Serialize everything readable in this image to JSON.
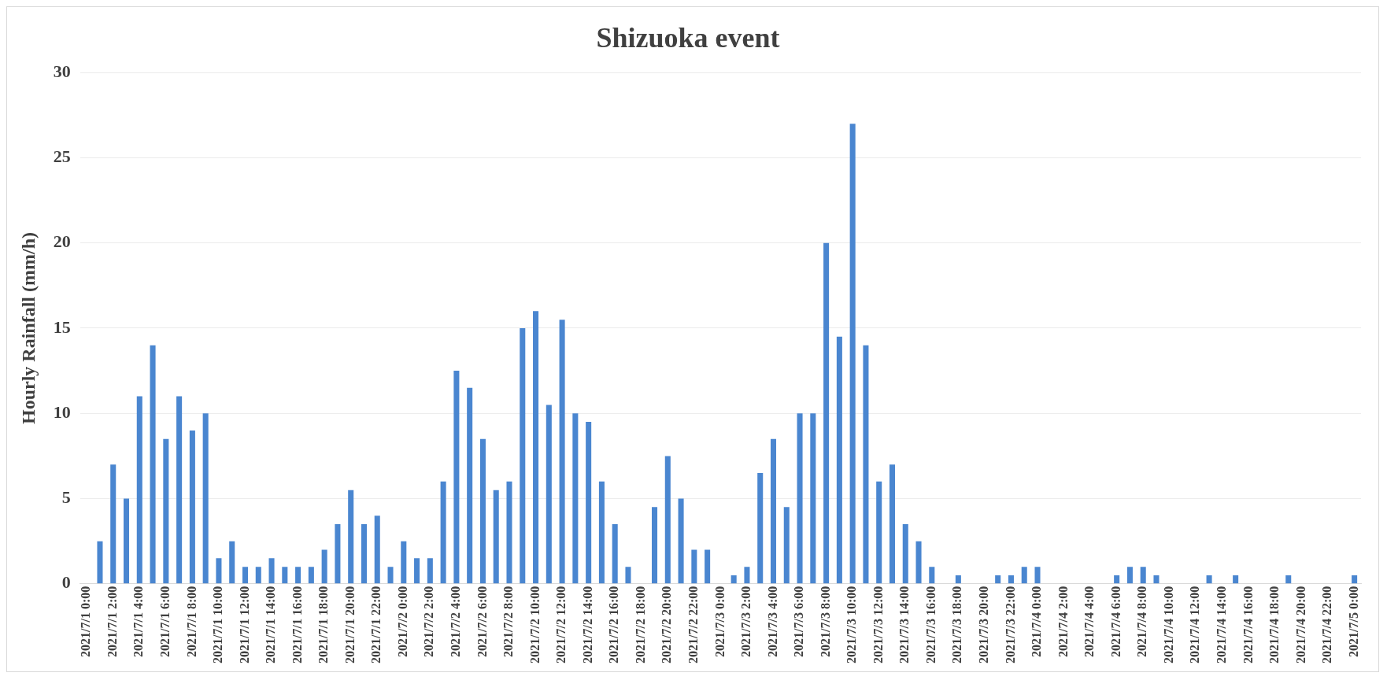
{
  "chart_data": {
    "type": "bar",
    "title": "Shizuoka event",
    "ylabel": "Hourly Rainfall (mm/h)",
    "categories": [
      "2021/7/1 0:00",
      null,
      "2021/7/1 2:00",
      null,
      "2021/7/1 4:00",
      null,
      "2021/7/1 6:00",
      null,
      "2021/7/1 8:00",
      null,
      "2021/7/1 10:00",
      null,
      "2021/7/1 12:00",
      null,
      "2021/7/1 14:00",
      null,
      "2021/7/1 16:00",
      null,
      "2021/7/1 18:00",
      null,
      "2021/7/1 20:00",
      null,
      "2021/7/1 22:00",
      null,
      "2021/7/2 0:00",
      null,
      "2021/7/2 2:00",
      null,
      "2021/7/2 4:00",
      null,
      "2021/7/2 6:00",
      null,
      "2021/7/2 8:00",
      null,
      "2021/7/2 10:00",
      null,
      "2021/7/2 12:00",
      null,
      "2021/7/2 14:00",
      null,
      "2021/7/2 16:00",
      null,
      "2021/7/2 18:00",
      null,
      "2021/7/2 20:00",
      null,
      "2021/7/2 22:00",
      null,
      "2021/7/3 0:00",
      null,
      "2021/7/3 2:00",
      null,
      "2021/7/3 4:00",
      null,
      "2021/7/3 6:00",
      null,
      "2021/7/3 8:00",
      null,
      "2021/7/3 10:00",
      null,
      "2021/7/3 12:00",
      null,
      "2021/7/3 14:00",
      null,
      "2021/7/3 16:00",
      null,
      "2021/7/3 18:00",
      null,
      "2021/7/3 20:00",
      null,
      "2021/7/3 22:00",
      null,
      "2021/7/4 0:00",
      null,
      "2021/7/4 2:00",
      null,
      "2021/7/4 4:00",
      null,
      "2021/7/4 6:00",
      null,
      "2021/7/4 8:00",
      null,
      "2021/7/4 10:00",
      null,
      "2021/7/4 12:00",
      null,
      "2021/7/4 14:00",
      null,
      "2021/7/4 16:00",
      null,
      "2021/7/4 18:00",
      null,
      "2021/7/4 20:00",
      null,
      "2021/7/4 22:00",
      null,
      "2021/7/5 0:00"
    ],
    "values": [
      0,
      2.5,
      7,
      5,
      11,
      14,
      8.5,
      11,
      9,
      10,
      1.5,
      2.5,
      1,
      1,
      1.5,
      1,
      1,
      1,
      2,
      3.5,
      5.5,
      3.5,
      4,
      1,
      2.5,
      1.5,
      1.5,
      6,
      12.5,
      11.5,
      8.5,
      5.5,
      6,
      15,
      16,
      10.5,
      15.5,
      10,
      9.5,
      6,
      3.5,
      1,
      0,
      4.5,
      7.5,
      5,
      2,
      2,
      0,
      0.5,
      1,
      6.5,
      8.5,
      4.5,
      10,
      10,
      20,
      14.5,
      27,
      14,
      6,
      7,
      3.5,
      2.5,
      1,
      0,
      0.5,
      0,
      0,
      0.5,
      0.5,
      1,
      1,
      0,
      0,
      0,
      0,
      0,
      0.5,
      1,
      1,
      0.5,
      0,
      0,
      0,
      0.5,
      0,
      0.5,
      0,
      0,
      0,
      0.5,
      0,
      0,
      0,
      0,
      0.5
    ],
    "color": "#4a86d0",
    "ylim": [
      0,
      30
    ],
    "yticks": [
      0,
      5,
      10,
      15,
      20,
      25,
      30
    ],
    "grid": "y",
    "legend": false
  }
}
